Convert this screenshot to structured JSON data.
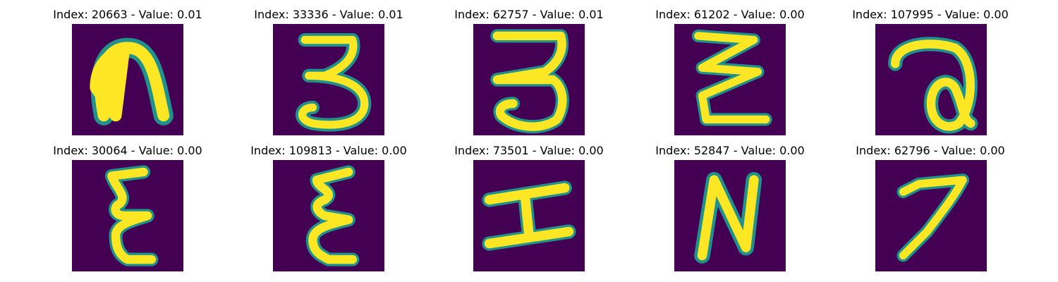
{
  "panels": [
    {
      "title": "Index: 20663 - Value: 0.01",
      "glyph": "arch-glyph"
    },
    {
      "title": "Index: 33336 - Value: 0.01",
      "glyph": "three-glyph"
    },
    {
      "title": "Index: 62757 - Value: 0.01",
      "glyph": "three-glyph"
    },
    {
      "title": "Index: 61202 - Value: 0.00",
      "glyph": "zigzag-glyph"
    },
    {
      "title": "Index: 107995 - Value: 0.00",
      "glyph": "loop-glyph"
    },
    {
      "title": "Index: 30064 - Value: 0.00",
      "glyph": "epsilon-glyph"
    },
    {
      "title": "Index: 109813 - Value: 0.00",
      "glyph": "epsilon-glyph"
    },
    {
      "title": "Index: 73501 - Value: 0.00",
      "glyph": "h-glyph"
    },
    {
      "title": "Index: 52847 - Value: 0.00",
      "glyph": "n-glyph"
    },
    {
      "title": "Index: 62796 - Value: 0.00",
      "glyph": "seven-glyph"
    }
  ],
  "colors": {
    "background": "#440154",
    "stroke": "#fde725",
    "edge": "#21918c"
  }
}
